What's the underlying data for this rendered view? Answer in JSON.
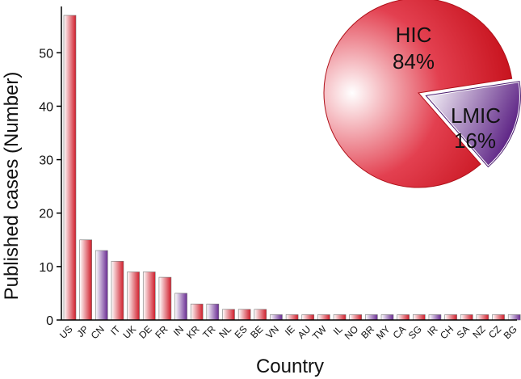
{
  "chart_data": [
    {
      "type": "bar",
      "title": "",
      "xlabel": "Country",
      "ylabel": "Published cases (Number)",
      "ylim": [
        0,
        57
      ],
      "yticks": [
        0,
        10,
        20,
        30,
        40,
        50
      ],
      "grid": false,
      "categories": [
        "US",
        "JP",
        "CN",
        "IT",
        "UK",
        "DE",
        "FR",
        "IN",
        "KR",
        "TR",
        "NL",
        "ES",
        "BE",
        "VN",
        "IE",
        "AU",
        "TW",
        "IL",
        "NO",
        "BR",
        "MY",
        "CA",
        "SG",
        "IR",
        "CH",
        "SA",
        "NZ",
        "CZ",
        "BG"
      ],
      "values": [
        57,
        15,
        13,
        11,
        9,
        9,
        8,
        5,
        3,
        3,
        2,
        2,
        2,
        1,
        1,
        1,
        1,
        1,
        1,
        1,
        1,
        1,
        1,
        1,
        1,
        1,
        1,
        1,
        1
      ],
      "income_group": [
        "HIC",
        "HIC",
        "LMIC",
        "HIC",
        "HIC",
        "HIC",
        "HIC",
        "LMIC",
        "HIC",
        "LMIC",
        "HIC",
        "HIC",
        "HIC",
        "LMIC",
        "HIC",
        "HIC",
        "HIC",
        "HIC",
        "HIC",
        "LMIC",
        "LMIC",
        "HIC",
        "HIC",
        "LMIC",
        "HIC",
        "HIC",
        "HIC",
        "HIC",
        "LMIC"
      ],
      "colors": {
        "HIC": "#d01c2a",
        "LMIC": "#6a2c93"
      }
    },
    {
      "type": "pie",
      "slices": [
        {
          "name": "HIC",
          "label": "84%",
          "value": 84,
          "color": "#d01c2a"
        },
        {
          "name": "LMIC",
          "label": "16%",
          "value": 16,
          "color": "#6a2c93"
        }
      ]
    }
  ]
}
